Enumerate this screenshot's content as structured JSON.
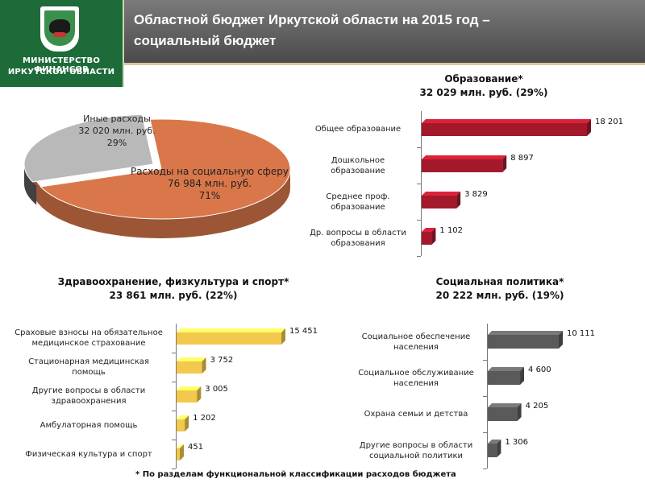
{
  "header": {
    "org_line1": "МИНИСТЕРСТВО ФИНАНСОВ",
    "org_line2": "ИРКУТСКОЙ ОБЛАСТИ",
    "title_line1": "Областной бюджет Иркутской области на 2015 год –",
    "title_line2": "социальный бюджет"
  },
  "footnote": "* По разделам функциональной классификации расходов бюджета",
  "colors": {
    "pie_social": "#d9774a",
    "pie_other": "#b9b9b9",
    "education": "#a3192b",
    "health": "#f2c94c",
    "social_policy": "#5a5a5a",
    "sidebar": "#1d6b39",
    "header": "#5e5e5e"
  },
  "chart_data": [
    {
      "type": "pie",
      "slices": [
        {
          "label_line1": "Расходы на социальную сферу",
          "label_line2": "76 984 млн. руб.",
          "label_line3": "71%",
          "value": 76984,
          "percent": 71
        },
        {
          "label_line1": "Иные расходы",
          "label_line2": "32 020 млн. руб.",
          "label_line3": "29%",
          "value": 32020,
          "percent": 29
        }
      ]
    },
    {
      "type": "bar",
      "title_line1": "Образование*",
      "title_line2": "32 029 млн. руб. (29%)",
      "categories": [
        {
          "line1": "Общее образование",
          "line2": ""
        },
        {
          "line1": "Дошкольное",
          "line2": "образование"
        },
        {
          "line1": "Среднее проф.",
          "line2": "образование"
        },
        {
          "line1": "Др. вопросы в области",
          "line2": "образования"
        }
      ],
      "values": [
        18201,
        8897,
        3829,
        1102
      ],
      "value_labels": [
        "18 201",
        "8 897",
        "3 829",
        "1 102"
      ],
      "xlim": [
        0,
        18201
      ]
    },
    {
      "type": "bar",
      "title_line1": "Здравоохранение, физкультура и спорт*",
      "title_line2": "23 861 млн. руб.  (22%)",
      "categories": [
        {
          "line1": "Сраховые взносы на обязательное",
          "line2": "медицинское страхование"
        },
        {
          "line1": "Стационарная медицинская",
          "line2": "помощь"
        },
        {
          "line1": "Другие вопросы в области",
          "line2": "здравоохранения"
        },
        {
          "line1": "Амбулаторная помощь",
          "line2": ""
        },
        {
          "line1": "Физическая культура и спорт",
          "line2": ""
        }
      ],
      "values": [
        15451,
        3752,
        3005,
        1202,
        451
      ],
      "value_labels": [
        "15 451",
        "3 752",
        "3 005",
        "1 202",
        "451"
      ],
      "xlim": [
        0,
        15451
      ]
    },
    {
      "type": "bar",
      "title_line1": "Социальная политика*",
      "title_line2": "20 222 млн. руб. (19%)",
      "categories": [
        {
          "line1": "Социальное обеспечение",
          "line2": "населения"
        },
        {
          "line1": "Социальное обслуживание",
          "line2": "населения"
        },
        {
          "line1": "Охрана семьи и детства",
          "line2": ""
        },
        {
          "line1": "Другие вопросы в области",
          "line2": "социальной политики"
        }
      ],
      "values": [
        10111,
        4600,
        4205,
        1306
      ],
      "value_labels": [
        "10 111",
        "4 600",
        "4 205",
        "1 306"
      ],
      "xlim": [
        0,
        10111
      ]
    }
  ]
}
